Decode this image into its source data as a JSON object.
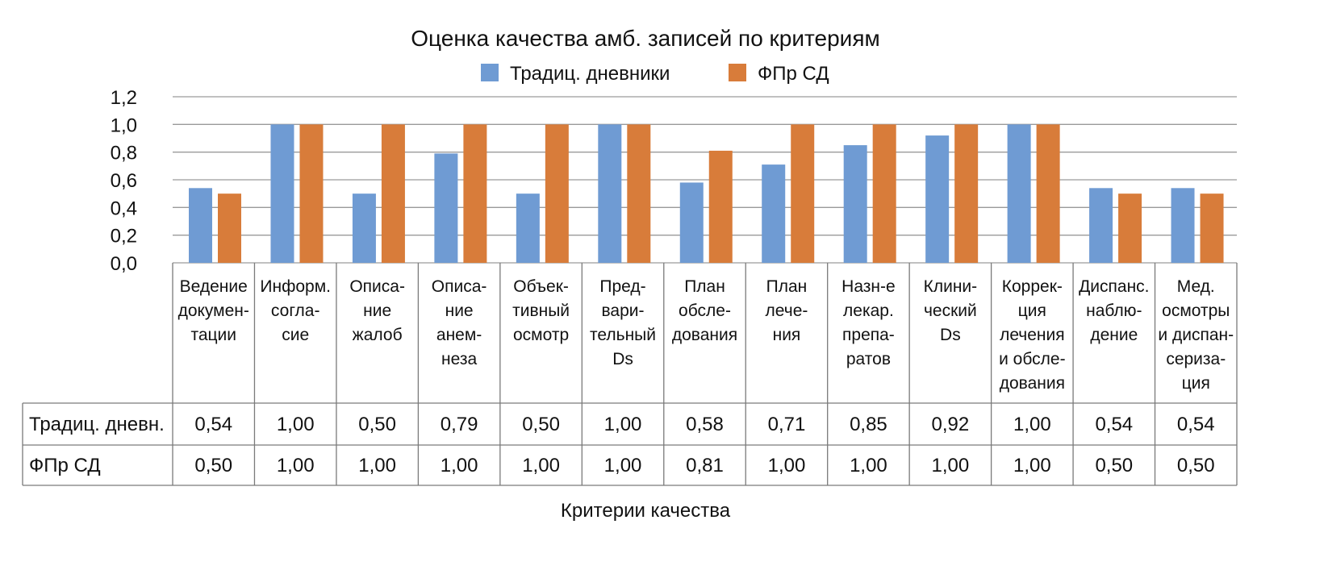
{
  "chart_data": {
    "type": "bar",
    "title": "Оценка качества амб. записей по критериям",
    "xlabel": "Критерии качества",
    "ylabel": "",
    "ylim": [
      0,
      1.2
    ],
    "yticks": [
      "0,0",
      "0,2",
      "0,4",
      "0,6",
      "0,8",
      "1,0",
      "1,2"
    ],
    "ytick_values": [
      0,
      0.2,
      0.4,
      0.6,
      0.8,
      1.0,
      1.2
    ],
    "grid": true,
    "legend_position": "top-center",
    "categories": [
      [
        "Ведение",
        "докумен-",
        "тации"
      ],
      [
        "Информ.",
        "согла-",
        "сие"
      ],
      [
        "Описа-",
        "ние",
        "жалоб"
      ],
      [
        "Описа-",
        "ние",
        "анем-",
        "неза"
      ],
      [
        "Объек-",
        "тивный",
        "осмотр"
      ],
      [
        "Пред-",
        "вари-",
        "тельный",
        "Ds"
      ],
      [
        "План",
        "обсле-",
        "дования"
      ],
      [
        "План",
        "лече-",
        "ния"
      ],
      [
        "Назн-е",
        "лекар.",
        "препа-",
        "ратов"
      ],
      [
        "Клини-",
        "ческий",
        "Ds"
      ],
      [
        "Коррек-",
        "ция",
        "лечения",
        "и обсле-",
        "дования"
      ],
      [
        "Диспанс.",
        "наблю-",
        "дение"
      ],
      [
        "Мед.",
        "осмотры",
        "и диспан-",
        "сериза-",
        "ция"
      ]
    ],
    "series": [
      {
        "name": "Традиц. дневники",
        "table_label": "Традиц. дневн.",
        "color": "#6f9bd3",
        "values": [
          0.54,
          1.0,
          0.5,
          0.79,
          0.5,
          1.0,
          0.58,
          0.71,
          0.85,
          0.92,
          1.0,
          0.54,
          0.54
        ],
        "labels": [
          "0,54",
          "1,00",
          "0,50",
          "0,79",
          "0,50",
          "1,00",
          "0,58",
          "0,71",
          "0,85",
          "0,92",
          "1,00",
          "0,54",
          "0,54"
        ]
      },
      {
        "name": "ФПр СД",
        "table_label": "ФПр СД",
        "color": "#d87c3a",
        "values": [
          0.5,
          1.0,
          1.0,
          1.0,
          1.0,
          1.0,
          0.81,
          1.0,
          1.0,
          1.0,
          1.0,
          0.5,
          0.5
        ],
        "labels": [
          "0,50",
          "1,00",
          "1,00",
          "1,00",
          "1,00",
          "1,00",
          "0,81",
          "1,00",
          "1,00",
          "1,00",
          "1,00",
          "0,50",
          "0,50"
        ]
      }
    ]
  }
}
